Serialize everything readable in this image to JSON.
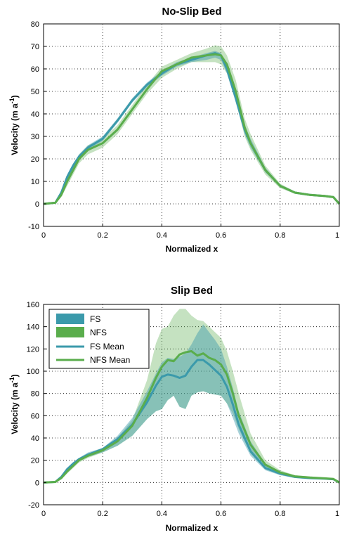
{
  "chart_data": [
    {
      "type": "line",
      "title": "No-Slip Bed",
      "xlabel": "Normalized x",
      "ylabel": "Velocity (m a -1)",
      "xlim": [
        0,
        1
      ],
      "ylim": [
        -10,
        80
      ],
      "xticks": [
        "0",
        "0.2",
        "0.4",
        "0.6",
        "0.8",
        "1"
      ],
      "xtick_values": [
        0,
        0.2,
        0.4,
        0.6,
        0.8,
        1
      ],
      "yticks": [
        "-10",
        "0",
        "10",
        "20",
        "30",
        "40",
        "50",
        "60",
        "70",
        "80"
      ],
      "ytick_values": [
        -10,
        0,
        10,
        20,
        30,
        40,
        50,
        60,
        70,
        80
      ],
      "grid": true,
      "legend": false,
      "colors": {
        "FS": "#3b9aab",
        "NFS": "#5aad4c"
      },
      "x": [
        0,
        0.04,
        0.06,
        0.08,
        0.1,
        0.12,
        0.15,
        0.2,
        0.25,
        0.3,
        0.35,
        0.4,
        0.45,
        0.5,
        0.55,
        0.58,
        0.6,
        0.62,
        0.65,
        0.68,
        0.7,
        0.75,
        0.8,
        0.85,
        0.9,
        0.95,
        0.98,
        1
      ],
      "series": [
        {
          "name": "FS Mean",
          "values": [
            0,
            0.5,
            5,
            12,
            17,
            21,
            25,
            29,
            37,
            46,
            53,
            58,
            62,
            64,
            66,
            67,
            66,
            60,
            47,
            33,
            27,
            15,
            8,
            5,
            4,
            3.5,
            3,
            0
          ]
        },
        {
          "name": "NFS Mean",
          "values": [
            0,
            0.5,
            4,
            10,
            15,
            20,
            24,
            27,
            33,
            42,
            51,
            59,
            62,
            65,
            66,
            66.5,
            66,
            62,
            50,
            34,
            27,
            15,
            8,
            5,
            4,
            3.5,
            3,
            0
          ]
        },
        {
          "name": "FS",
          "type": "band",
          "lower": [
            0,
            0.3,
            4,
            11,
            16,
            20,
            24,
            28,
            36,
            45,
            52,
            57,
            61,
            63,
            64,
            65,
            64,
            58,
            45,
            31,
            25,
            14,
            7.5,
            4.5,
            3.5,
            3.2,
            2.7,
            0
          ],
          "upper": [
            0,
            0.7,
            6,
            13,
            18,
            22,
            26,
            30,
            38,
            47,
            54,
            59,
            63,
            65,
            67,
            68,
            67,
            62,
            49,
            35,
            29,
            16,
            8.5,
            5.5,
            4.5,
            3.8,
            3.3,
            0
          ]
        },
        {
          "name": "NFS",
          "type": "band",
          "lower": [
            0,
            0.3,
            3,
            8,
            13,
            18,
            22,
            25,
            31,
            40,
            49,
            56,
            60,
            63,
            63,
            63,
            62,
            58,
            46,
            30,
            24,
            13,
            7,
            4.5,
            3.5,
            3,
            2.5,
            0
          ],
          "upper": [
            0,
            0.8,
            5,
            12,
            17,
            22,
            26,
            29,
            35,
            44,
            53,
            61,
            64,
            67,
            69,
            70.5,
            70,
            66,
            55,
            38,
            31,
            17,
            9,
            5.5,
            4.5,
            4,
            3.5,
            0
          ]
        }
      ]
    },
    {
      "type": "line",
      "title": "Slip Bed",
      "xlabel": "Normalized x",
      "ylabel": "Velocity (m a -1)",
      "xlim": [
        0,
        1
      ],
      "ylim": [
        -20,
        160
      ],
      "xticks": [
        "0",
        "0.2",
        "0.4",
        "0.6",
        "0.8",
        "1"
      ],
      "xtick_values": [
        0,
        0.2,
        0.4,
        0.6,
        0.8,
        1
      ],
      "yticks": [
        "-20",
        "0",
        "20",
        "40",
        "60",
        "80",
        "100",
        "120",
        "140",
        "160"
      ],
      "ytick_values": [
        -20,
        0,
        20,
        40,
        60,
        80,
        100,
        120,
        140,
        160
      ],
      "grid": true,
      "legend": true,
      "legend_position": "top-left",
      "legend_entries": [
        "FS",
        "NFS",
        "FS Mean",
        "NFS Mean"
      ],
      "colors": {
        "FS": "#3b9aab",
        "NFS": "#5aad4c"
      },
      "x": [
        0,
        0.04,
        0.06,
        0.08,
        0.1,
        0.12,
        0.15,
        0.2,
        0.25,
        0.3,
        0.35,
        0.38,
        0.4,
        0.42,
        0.44,
        0.46,
        0.48,
        0.5,
        0.52,
        0.54,
        0.56,
        0.58,
        0.6,
        0.62,
        0.64,
        0.66,
        0.7,
        0.75,
        0.8,
        0.85,
        0.9,
        0.95,
        0.98,
        1
      ],
      "series": [
        {
          "name": "FS Mean",
          "values": [
            0,
            0.5,
            5,
            12,
            17,
            21,
            25,
            30,
            39,
            52,
            72,
            87,
            95,
            97,
            96,
            94,
            96,
            104,
            110,
            110,
            106,
            101,
            96,
            86,
            70,
            52,
            28,
            13,
            8,
            5,
            4,
            3.5,
            3,
            0
          ]
        },
        {
          "name": "NFS Mean",
          "values": [
            0,
            0.5,
            4,
            10,
            15,
            20,
            24,
            29,
            37,
            51,
            76,
            94,
            104,
            110,
            109,
            115,
            117,
            118,
            114,
            116,
            112,
            110,
            106,
            97,
            80,
            60,
            34,
            16,
            9,
            5.5,
            4.5,
            3.8,
            3.2,
            0
          ]
        },
        {
          "name": "FS",
          "type": "band",
          "lower": [
            0,
            0.3,
            4,
            10,
            15,
            19,
            23,
            27,
            33,
            42,
            57,
            64,
            66,
            74,
            78,
            68,
            66,
            78,
            81,
            82,
            80,
            79,
            78,
            71,
            58,
            44,
            24,
            11,
            6.5,
            4,
            3,
            2.5,
            2,
            0
          ],
          "upper": [
            0,
            0.7,
            6,
            13,
            18,
            22,
            27,
            31,
            42,
            58,
            82,
            98,
            108,
            112,
            111,
            113,
            116,
            124,
            134,
            142,
            135,
            128,
            120,
            104,
            85,
            64,
            37,
            17,
            10,
            6,
            5,
            4.5,
            4,
            0
          ]
        },
        {
          "name": "NFS",
          "type": "band",
          "lower": [
            0,
            0.3,
            3,
            8,
            13,
            18,
            22,
            27,
            33,
            42,
            57,
            64,
            66,
            74,
            78,
            68,
            66,
            78,
            81,
            82,
            80,
            79,
            78,
            71,
            62,
            48,
            26,
            12,
            7,
            4.5,
            3.5,
            3,
            2.5,
            0
          ],
          "upper": [
            0,
            0.8,
            5,
            12,
            17,
            22,
            26,
            31,
            40,
            56,
            92,
            125,
            138,
            140,
            150,
            156,
            156,
            150,
            146,
            145,
            140,
            135,
            130,
            118,
            100,
            80,
            44,
            20,
            11,
            6.5,
            5.5,
            4.5,
            4,
            0
          ]
        }
      ]
    }
  ]
}
